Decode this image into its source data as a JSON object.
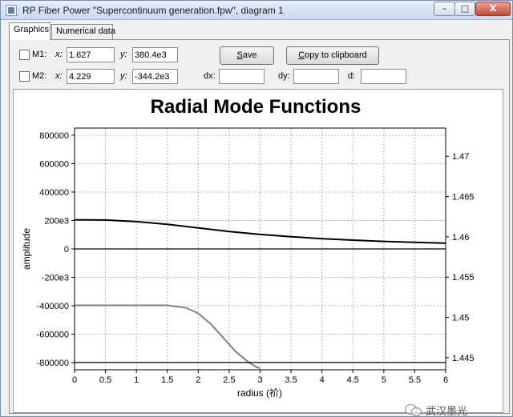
{
  "window": {
    "title": "RP Fiber Power \"Supercontinuum generation.fpw\", diagram 1",
    "controls": {
      "minimize": "–",
      "maximize": "□",
      "close": "X"
    }
  },
  "tabs": [
    {
      "label": "Graphics",
      "active": true
    },
    {
      "label": "Numerical data",
      "active": false
    }
  ],
  "markers": {
    "m1": {
      "label": "M1:",
      "x_label": "x:",
      "x_value": "1.627",
      "y_label": "y:",
      "y_value": "380.4e3",
      "checked": false
    },
    "m2": {
      "label": "M2:",
      "x_label": "x:",
      "x_value": "4.229",
      "y_label": "y:",
      "y_value": "-344.2e3",
      "checked": false
    },
    "dx_label": "dx:",
    "dx_value": "",
    "dy_label": "dy:",
    "dy_value": "",
    "d_label": "d:",
    "d_value": ""
  },
  "buttons": {
    "save_label_u": "S",
    "save_label_rest": "ave",
    "copy_label_u": "C",
    "copy_label_rest": "opy to clipboard"
  },
  "chart_data": {
    "type": "line",
    "title": "Radial Mode Functions",
    "xlabel": "radius (祄)",
    "ylabel": "amplitude",
    "xlim": [
      0,
      6
    ],
    "ylim_left": [
      -850000,
      850000
    ],
    "ylim_right": [
      1.4435,
      1.4735
    ],
    "x_ticks": [
      "0",
      "0.5",
      "1",
      "1.5",
      "2",
      "2.5",
      "3",
      "3.5",
      "4",
      "4.5",
      "5",
      "5.5",
      "6"
    ],
    "y_ticks_left": [
      "800000",
      "600000",
      "400000",
      "200e3",
      "0",
      "-200e3",
      "-400000",
      "-600000",
      "-800000"
    ],
    "y_ticks_right": [
      "1.47",
      "1.465",
      "1.46",
      "1.455",
      "1.45",
      "1.445"
    ],
    "grid": true,
    "series": [
      {
        "axis": "left",
        "color": "#000000",
        "x": [
          0,
          0.5,
          1,
          1.5,
          2,
          2.5,
          3,
          3.5,
          4,
          4.5,
          5,
          5.5,
          6
        ],
        "y": [
          205000,
          203000,
          192000,
          173000,
          148000,
          122000,
          102000,
          86000,
          72000,
          62000,
          53000,
          46000,
          40000
        ]
      },
      {
        "axis": "left",
        "color": "#000000",
        "x": [
          0,
          6
        ],
        "y": [
          0,
          0
        ]
      },
      {
        "axis": "right",
        "color": "#808080",
        "x": [
          0,
          1.0,
          1.5,
          1.8,
          2.0,
          2.2,
          2.4,
          2.6,
          2.8,
          2.95,
          3.0
        ],
        "y": [
          1.4515,
          1.4515,
          1.4515,
          1.4512,
          1.4505,
          1.4492,
          1.4475,
          1.4458,
          1.4445,
          1.4438,
          1.4437
        ]
      },
      {
        "axis": "right",
        "color": "#000000",
        "x": [
          0,
          6
        ],
        "y": [
          1.4444,
          1.4444
        ]
      }
    ]
  },
  "watermark": {
    "text": "武汉墨光"
  }
}
